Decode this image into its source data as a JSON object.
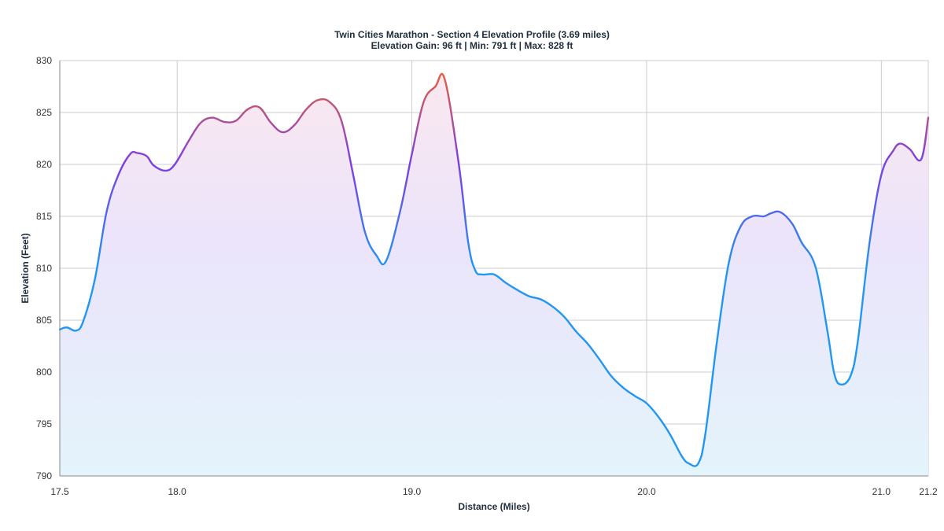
{
  "chart_data": {
    "type": "area",
    "title": "Twin Cities Marathon - Section 4 Elevation Profile (3.69 miles)",
    "subtitle": "Elevation Gain: 96 ft | Min: 791 ft | Max: 828 ft",
    "xlabel": "Distance (Miles)",
    "ylabel": "Elevation (Feet)",
    "xlim": [
      17.5,
      21.2
    ],
    "ylim": [
      790,
      830
    ],
    "x_ticks": [
      "17.5",
      "18.0",
      "19.0",
      "20.0",
      "21.0",
      "21.2"
    ],
    "x_tick_values": [
      17.5,
      18.0,
      19.0,
      20.0,
      21.0,
      21.2
    ],
    "y_ticks": [
      "790",
      "795",
      "800",
      "805",
      "810",
      "815",
      "820",
      "825",
      "830"
    ],
    "y_tick_values": [
      790,
      795,
      800,
      805,
      810,
      815,
      820,
      825,
      830
    ],
    "grid": true,
    "legend": "none",
    "gradient_colors": {
      "low": "#2196f3",
      "mid": "#7b3fe4",
      "high": "#f0652a",
      "fill_low": "#e3f4fb",
      "fill_high": "#fbe8ee"
    },
    "series": [
      {
        "x": [
          17.5,
          17.53,
          17.57,
          17.6,
          17.65,
          17.7,
          17.75,
          17.8,
          17.83,
          17.87,
          17.9,
          17.95,
          17.99,
          18.05,
          18.1,
          18.15,
          18.2,
          18.25,
          18.3,
          18.35,
          18.4,
          18.45,
          18.5,
          18.55,
          18.6,
          18.65,
          18.7,
          18.75,
          18.8,
          18.85,
          18.89,
          18.95,
          19.0,
          19.05,
          19.1,
          19.14,
          19.2,
          19.24,
          19.27,
          19.3,
          19.35,
          19.4,
          19.45,
          19.5,
          19.55,
          19.6,
          19.65,
          19.7,
          19.75,
          19.8,
          19.85,
          19.9,
          19.95,
          20.0,
          20.05,
          20.1,
          20.15,
          20.18,
          20.22,
          20.25,
          20.3,
          20.35,
          20.4,
          20.45,
          20.5,
          20.53,
          20.57,
          20.62,
          20.66,
          20.72,
          20.77,
          20.8,
          20.83,
          20.87,
          20.9,
          20.95,
          21.0,
          21.05,
          21.08,
          21.12,
          21.17,
          21.2
        ],
        "y": [
          804.1,
          804.3,
          804.0,
          804.9,
          809.0,
          815.5,
          819.0,
          821.0,
          821.1,
          820.8,
          819.9,
          819.4,
          820.0,
          822.3,
          824.0,
          824.5,
          824.1,
          824.2,
          825.3,
          825.5,
          824.0,
          823.1,
          823.8,
          825.3,
          826.2,
          826.0,
          824.2,
          819.0,
          813.5,
          811.2,
          810.7,
          815.5,
          821.0,
          826.0,
          827.5,
          828.2,
          820.0,
          812.5,
          809.8,
          809.4,
          809.4,
          808.6,
          807.9,
          807.3,
          807.0,
          806.3,
          805.3,
          803.9,
          802.7,
          801.2,
          799.6,
          798.5,
          797.7,
          797.0,
          795.7,
          794.0,
          791.9,
          791.2,
          791.2,
          794.0,
          803.0,
          810.5,
          814.0,
          815.0,
          815.0,
          815.3,
          815.4,
          814.3,
          812.5,
          810.1,
          804.0,
          799.8,
          798.8,
          799.7,
          803.0,
          812.5,
          819.0,
          821.3,
          822.0,
          821.5,
          820.5,
          824.5
        ]
      }
    ]
  }
}
